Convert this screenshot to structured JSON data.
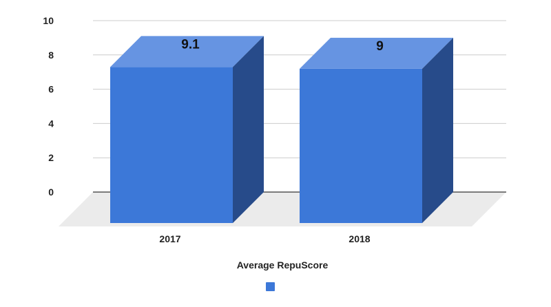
{
  "chart_data": {
    "type": "bar",
    "style": "3d-column",
    "title": "",
    "xlabel": "",
    "ylabel": "",
    "categories": [
      "2017",
      "2018"
    ],
    "series": [
      {
        "name": "Average RepuScore",
        "values": [
          9.1,
          9
        ],
        "color": "#3c78d8",
        "top_color": "#6694e2",
        "side_color": "#274b8a"
      }
    ],
    "data_labels": [
      "9.1",
      "9"
    ],
    "ylim": [
      0,
      10
    ],
    "yticks": [
      0,
      2,
      4,
      6,
      8,
      10
    ],
    "ytick_labels": [
      "0",
      "2",
      "4",
      "6",
      "8",
      "10"
    ],
    "grid": true,
    "legend": {
      "title": "Average RepuScore",
      "position": "bottom"
    },
    "floor_color": "#ebebeb",
    "grid_color": "#cccccc"
  }
}
